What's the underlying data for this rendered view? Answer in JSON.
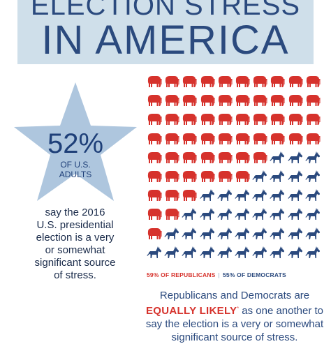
{
  "header": {
    "title_top": "ELECTION STRESS",
    "title_main": "IN AMERICA"
  },
  "stat": {
    "percent": "52%",
    "label_line1": "OF U.S.",
    "label_line2": "ADULTS",
    "description": [
      "say the 2016",
      "U.S. presidential",
      "election is a very",
      "or somewhat",
      "significant source",
      "of stress."
    ]
  },
  "pictogram": {
    "total_icons": 100,
    "republican_share": 59,
    "democrat_share": 55,
    "republican_label": "59% OF REPUBLICANS",
    "separator": "|",
    "democrat_label": "55% OF DEMOCRATS",
    "republican_icon": "elephant-icon",
    "democrat_icon": "donkey-icon"
  },
  "footer_note": {
    "line1": "Republicans and Democrats are",
    "highlight": "EQUALLY LIKELY",
    "asterisk": "*",
    "line2_rest": "as one another to",
    "line3": "say the election is a very or somewhat",
    "line4": "significant source of stress."
  },
  "colors": {
    "banner": "#cfdfea",
    "title": "#2b4a7e",
    "republican": "#d6322c",
    "democrat": "#2b4a7e",
    "star": "#aec6de"
  }
}
